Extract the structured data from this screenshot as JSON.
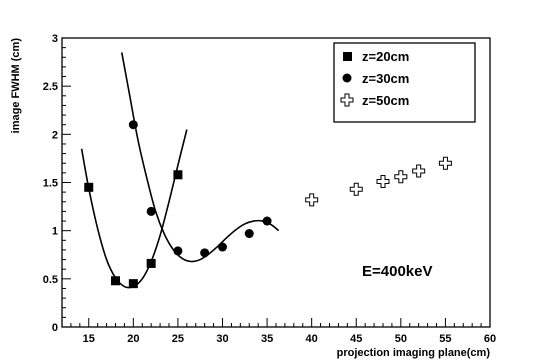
{
  "chart_data": {
    "type": "scatter",
    "xlabel": "projection imaging plane(cm)",
    "ylabel": "image FWHM (cm)",
    "xlim": [
      12,
      60
    ],
    "ylim": [
      0,
      3
    ],
    "xticks": [
      "15",
      "20",
      "25",
      "30",
      "35",
      "40",
      "45",
      "50",
      "55",
      "60"
    ],
    "yticks": [
      "0",
      "0.5",
      "1",
      "1.5",
      "2",
      "2.5",
      "3"
    ],
    "annotation": "E=400keV",
    "legend_position": "top-right",
    "series": [
      {
        "name": "z=20cm",
        "marker": "filled-square",
        "x": [
          15,
          18,
          20,
          22,
          25
        ],
        "y": [
          1.45,
          0.48,
          0.45,
          0.66,
          1.58
        ],
        "fit_curve": {
          "x": [
            14.2,
            15,
            16,
            17,
            18,
            19,
            20,
            21,
            22,
            23,
            24,
            25,
            26
          ],
          "y": [
            1.85,
            1.44,
            1.02,
            0.7,
            0.51,
            0.42,
            0.42,
            0.5,
            0.68,
            0.95,
            1.3,
            1.68,
            2.05
          ]
        }
      },
      {
        "name": "z=30cm",
        "marker": "filled-circle",
        "x": [
          20,
          22,
          25,
          28,
          30,
          33,
          35
        ],
        "y": [
          2.1,
          1.2,
          0.79,
          0.77,
          0.83,
          0.97,
          1.1
        ],
        "fit_curve": {
          "x": [
            18.7,
            19.5,
            20.5,
            21.5,
            22.5,
            23.5,
            24.5,
            25.5,
            26.5,
            27.5,
            28.5,
            29.5,
            30.5,
            31.5,
            32.5,
            33.5,
            34.5,
            35.5,
            36.3
          ],
          "y": [
            2.85,
            2.45,
            1.95,
            1.55,
            1.2,
            0.96,
            0.8,
            0.71,
            0.68,
            0.7,
            0.76,
            0.84,
            0.93,
            1.01,
            1.07,
            1.1,
            1.1,
            1.06,
            1.0
          ]
        }
      },
      {
        "name": "z=50cm",
        "marker": "open-cross",
        "x": [
          40,
          45,
          48,
          50,
          52,
          55
        ],
        "y": [
          1.32,
          1.43,
          1.51,
          1.56,
          1.62,
          1.7
        ]
      }
    ]
  }
}
